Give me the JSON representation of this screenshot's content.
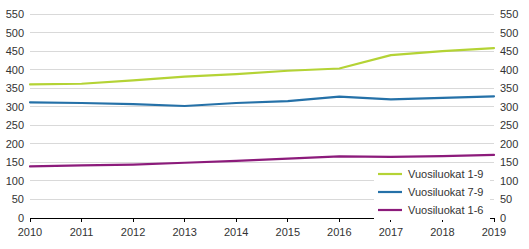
{
  "chart_data": {
    "type": "line",
    "x": [
      2010,
      2011,
      2012,
      2013,
      2014,
      2015,
      2016,
      2017,
      2018,
      2019
    ],
    "xlim": [
      2010,
      2019
    ],
    "xticks": [
      2010,
      2011,
      2012,
      2013,
      2014,
      2015,
      2016,
      2017,
      2018,
      2019
    ],
    "ylim": [
      0,
      550
    ],
    "yticks": [
      0,
      50,
      100,
      150,
      200,
      250,
      300,
      350,
      400,
      450,
      500,
      550
    ],
    "grid": true,
    "legend": "lower right",
    "series": [
      {
        "name": "Vuosiluokat 1-9",
        "color": "#b4d335",
        "values": [
          360,
          362,
          371,
          381,
          388,
          397,
          403,
          439,
          450,
          458
        ]
      },
      {
        "name": "Vuosiluokat 7-9",
        "color": "#2571a8",
        "values": [
          312,
          310,
          307,
          302,
          310,
          315,
          327,
          320,
          324,
          328
        ]
      },
      {
        "name": "Vuosiluokat 1-6",
        "color": "#8c1b7b",
        "values": [
          139,
          142,
          144,
          149,
          154,
          160,
          166,
          165,
          167,
          170
        ]
      }
    ]
  }
}
